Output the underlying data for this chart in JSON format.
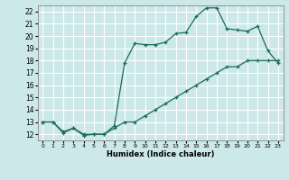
{
  "title": "",
  "xlabel": "Humidex (Indice chaleur)",
  "ylabel": "",
  "background_color": "#cce8e8",
  "line_color": "#1a6b5a",
  "grid_color": "#ffffff",
  "xlim": [
    -0.5,
    23.5
  ],
  "ylim": [
    11.5,
    22.5
  ],
  "xticks": [
    0,
    1,
    2,
    3,
    4,
    5,
    6,
    7,
    8,
    9,
    10,
    11,
    12,
    13,
    14,
    15,
    16,
    17,
    18,
    19,
    20,
    21,
    22,
    23
  ],
  "yticks": [
    12,
    13,
    14,
    15,
    16,
    17,
    18,
    19,
    20,
    21,
    22
  ],
  "line1_x": [
    0,
    1,
    2,
    3,
    4,
    5,
    6,
    7,
    8,
    9,
    10,
    11,
    12,
    13,
    14,
    15,
    16,
    17,
    18,
    19,
    20,
    21,
    22,
    23
  ],
  "line1_y": [
    13,
    13,
    12.1,
    12.5,
    12.0,
    12.0,
    12.0,
    12.5,
    13.0,
    13.0,
    13.5,
    14.0,
    14.5,
    15.0,
    15.5,
    16.0,
    16.5,
    17.0,
    17.5,
    17.5,
    18.0,
    18.0,
    18.0,
    18.0
  ],
  "line2_x": [
    0,
    1,
    2,
    3,
    4,
    5,
    6,
    7,
    8,
    9,
    10,
    11,
    12,
    13,
    14,
    15,
    16,
    17,
    18,
    19,
    20,
    21,
    22,
    23
  ],
  "line2_y": [
    13,
    13,
    12.2,
    12.5,
    11.9,
    12.0,
    12.0,
    12.7,
    17.8,
    19.4,
    19.3,
    19.3,
    19.5,
    20.2,
    20.3,
    21.6,
    22.3,
    22.3,
    20.6,
    20.5,
    20.4,
    20.8,
    18.8,
    17.8
  ]
}
